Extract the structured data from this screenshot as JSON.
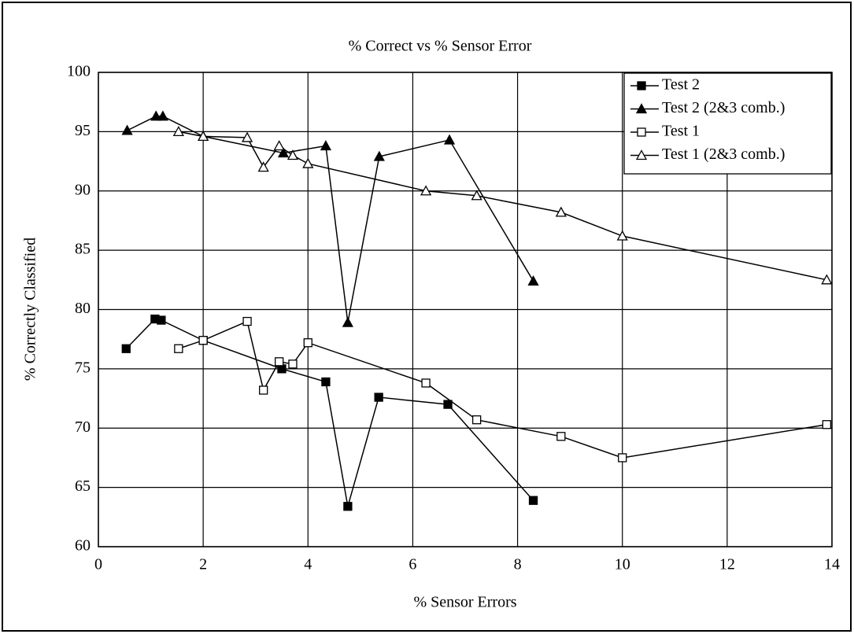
{
  "chart_data": {
    "type": "line",
    "title": "% Correct vs % Sensor Error",
    "x_label": "% Sensor Errors",
    "y_label": "% Correctly Classified",
    "xlim": [
      0,
      14
    ],
    "xticks": [
      0,
      2,
      4,
      6,
      8,
      10,
      12,
      14
    ],
    "ylim": [
      60,
      100
    ],
    "yticks": [
      60,
      65,
      70,
      75,
      80,
      85,
      90,
      95,
      100
    ],
    "grid": true,
    "legend": "upper right",
    "series": [
      {
        "name": "Test 2",
        "color": "#000000",
        "marker": "square",
        "filled": true,
        "x": [
          0.53,
          1.08,
          1.2,
          2.0,
          3.5,
          4.34,
          4.76,
          5.35,
          6.67,
          8.3
        ],
        "values": [
          76.7,
          79.2,
          79.1,
          77.4,
          75.0,
          73.9,
          63.4,
          72.6,
          72.0,
          63.9
        ]
      },
      {
        "name": "Test 2 (2&3 comb.)",
        "color": "#000000",
        "marker": "triangle",
        "filled": true,
        "x": [
          0.55,
          1.1,
          1.23,
          2.0,
          3.53,
          4.34,
          4.76,
          5.36,
          6.7,
          8.3
        ],
        "values": [
          95.1,
          96.3,
          96.3,
          94.6,
          93.2,
          93.8,
          78.9,
          92.9,
          94.3,
          82.4
        ]
      },
      {
        "name": "Test 1",
        "color": "#000000",
        "marker": "square",
        "filled": false,
        "x": [
          1.53,
          2.0,
          2.84,
          3.15,
          3.45,
          3.71,
          4.0,
          6.25,
          7.22,
          8.83,
          10.0,
          13.9
        ],
        "values": [
          76.7,
          77.4,
          79.0,
          73.2,
          75.6,
          75.4,
          77.2,
          73.8,
          70.7,
          69.3,
          67.5,
          70.3
        ]
      },
      {
        "name": "Test 1 (2&3 comb.)",
        "color": "#000000",
        "marker": "triangle",
        "filled": false,
        "x": [
          1.53,
          2.0,
          2.84,
          3.15,
          3.45,
          3.71,
          4.0,
          6.25,
          7.22,
          8.83,
          10.0,
          13.9
        ],
        "values": [
          95.0,
          94.6,
          94.5,
          92.0,
          93.8,
          93.0,
          92.3,
          90.0,
          89.6,
          88.2,
          86.2,
          82.5
        ]
      }
    ]
  }
}
